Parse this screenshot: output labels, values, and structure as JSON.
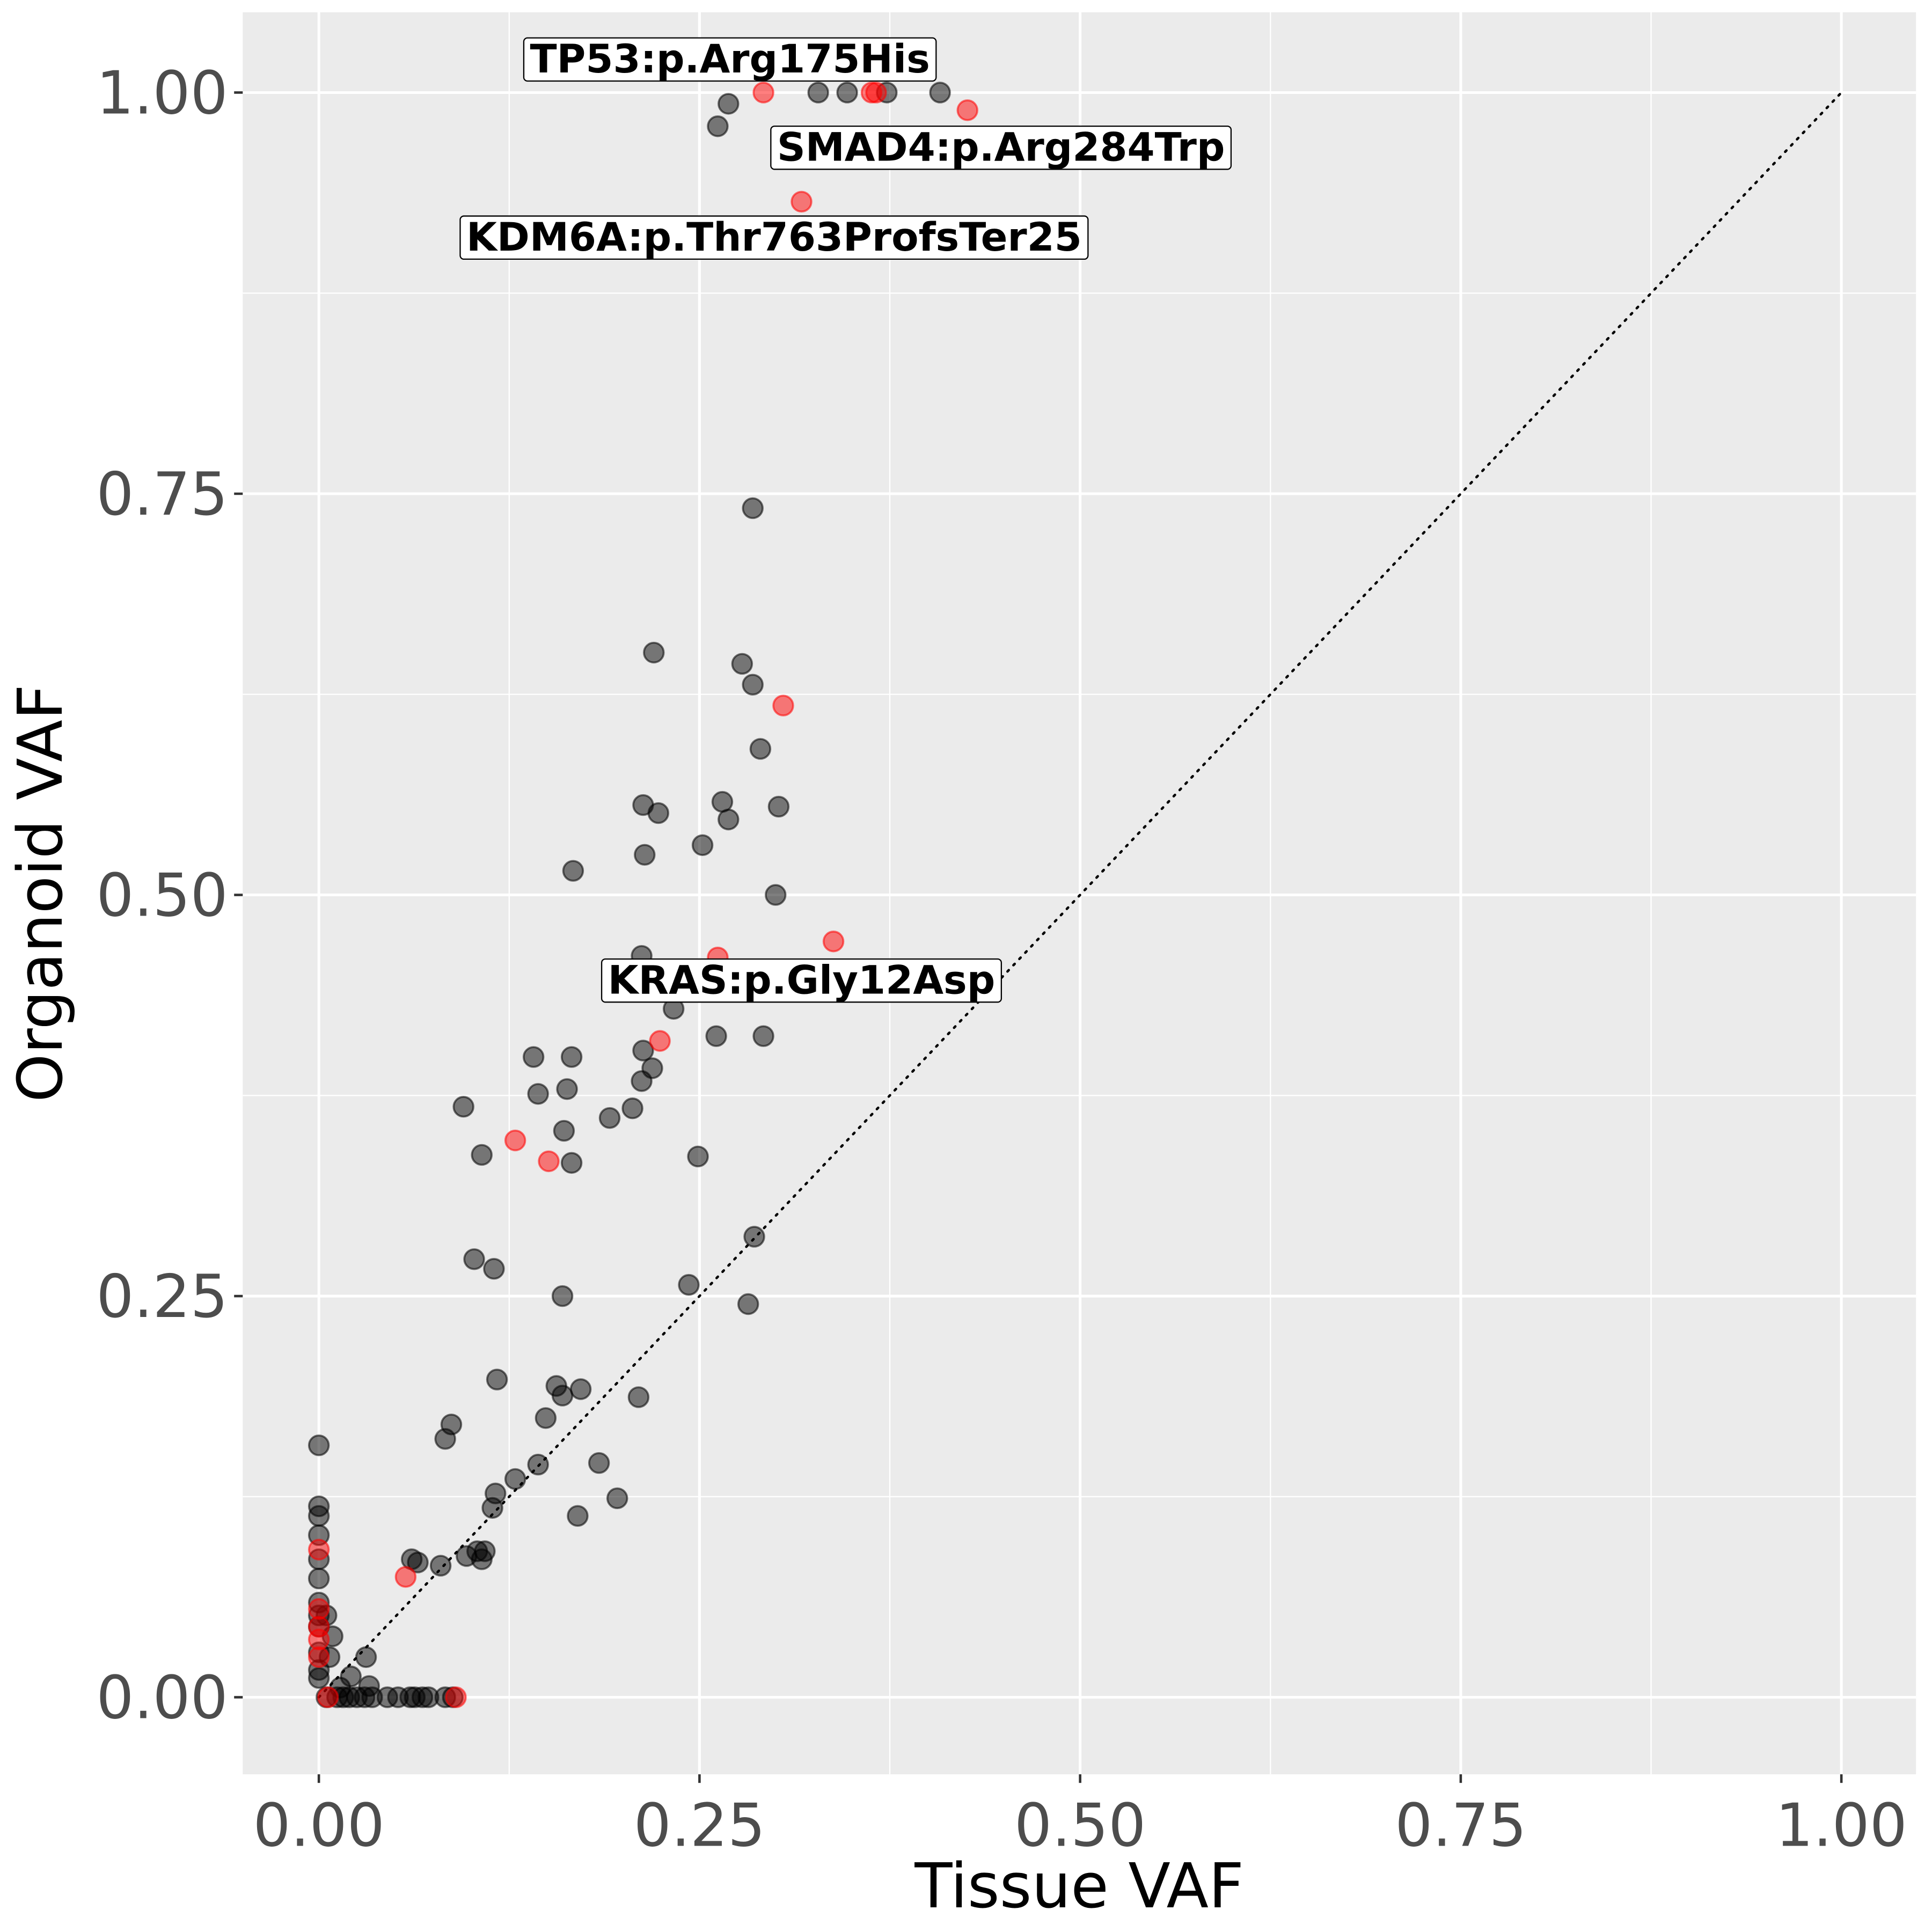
{
  "chart_data": {
    "type": "scatter",
    "xlabel": "Tissue VAF",
    "ylabel": "Organoid VAF",
    "xlim": [
      -0.05,
      1.049
    ],
    "ylim": [
      -0.048,
      1.05
    ],
    "xticks": [
      0,
      0.25,
      0.5,
      0.75,
      1.0
    ],
    "yticks": [
      0,
      0.25,
      0.5,
      0.75,
      1.0
    ],
    "xtick_labels": [
      "0.00",
      "0.25",
      "0.50",
      "0.75",
      "1.00"
    ],
    "ytick_labels": [
      "0.00",
      "0.25",
      "0.50",
      "0.75",
      "1.00"
    ],
    "grid": true,
    "reference_line": {
      "type": "identity",
      "style": "dotted",
      "from": [
        0,
        0
      ],
      "to": [
        1,
        1
      ]
    },
    "colors": {
      "panel": "#ebebeb",
      "black_series": "#000000",
      "red_series": "#ff0000"
    },
    "series": [
      {
        "name": "other",
        "color": "#000000",
        "points": [
          [
            0.262,
            0.979
          ],
          [
            0.269,
            0.993
          ],
          [
            0.328,
            1.0
          ],
          [
            0.347,
            1.0
          ],
          [
            0.373,
            1.0
          ],
          [
            0.408,
            1.0
          ],
          [
            0.285,
            0.741
          ],
          [
            0.22,
            0.651
          ],
          [
            0.278,
            0.644
          ],
          [
            0.285,
            0.631
          ],
          [
            0.29,
            0.591
          ],
          [
            0.265,
            0.558
          ],
          [
            0.213,
            0.556
          ],
          [
            0.223,
            0.551
          ],
          [
            0.269,
            0.547
          ],
          [
            0.302,
            0.555
          ],
          [
            0.252,
            0.531
          ],
          [
            0.214,
            0.525
          ],
          [
            0.167,
            0.515
          ],
          [
            0.3,
            0.5
          ],
          [
            0.212,
            0.462
          ],
          [
            0.233,
            0.429
          ],
          [
            0.261,
            0.412
          ],
          [
            0.292,
            0.412
          ],
          [
            0.213,
            0.403
          ],
          [
            0.219,
            0.392
          ],
          [
            0.212,
            0.384
          ],
          [
            0.141,
            0.399
          ],
          [
            0.166,
            0.399
          ],
          [
            0.144,
            0.376
          ],
          [
            0.163,
            0.379
          ],
          [
            0.095,
            0.368
          ],
          [
            0.206,
            0.367
          ],
          [
            0.191,
            0.361
          ],
          [
            0.161,
            0.353
          ],
          [
            0.166,
            0.333
          ],
          [
            0.107,
            0.338
          ],
          [
            0.249,
            0.337
          ],
          [
            0.286,
            0.287
          ],
          [
            0.102,
            0.273
          ],
          [
            0.115,
            0.267
          ],
          [
            0.16,
            0.25
          ],
          [
            0.243,
            0.257
          ],
          [
            0.282,
            0.245
          ],
          [
            0.117,
            0.198
          ],
          [
            0.156,
            0.194
          ],
          [
            0.172,
            0.192
          ],
          [
            0.16,
            0.188
          ],
          [
            0.21,
            0.187
          ],
          [
            0.149,
            0.174
          ],
          [
            0.087,
            0.17
          ],
          [
            0.083,
            0.161
          ],
          [
            0.144,
            0.145
          ],
          [
            0.184,
            0.146
          ],
          [
            0.129,
            0.136
          ],
          [
            0.116,
            0.127
          ],
          [
            0.114,
            0.118
          ],
          [
            0.196,
            0.124
          ],
          [
            0.17,
            0.113
          ],
          [
            0,
            0.157
          ],
          [
            0,
            0.119
          ],
          [
            0,
            0.113
          ],
          [
            0,
            0.101
          ],
          [
            0,
            0.086
          ],
          [
            0,
            0.074
          ],
          [
            0,
            0.059
          ],
          [
            0,
            0.051
          ],
          [
            0,
            0.044
          ],
          [
            0,
            0.028
          ],
          [
            0,
            0.017
          ],
          [
            0,
            0.012
          ],
          [
            0.061,
            0.086
          ],
          [
            0.065,
            0.084
          ],
          [
            0.08,
            0.082
          ],
          [
            0.097,
            0.088
          ],
          [
            0.104,
            0.091
          ],
          [
            0.107,
            0.086
          ],
          [
            0.109,
            0.091
          ],
          [
            0.031,
            0.025
          ],
          [
            0.033,
            0.007
          ],
          [
            0.005,
            0.051
          ],
          [
            0.009,
            0.038
          ],
          [
            0.007,
            0.025
          ],
          [
            0.021,
            0.013
          ],
          [
            0.014,
            0.006
          ],
          [
            0.005,
            0
          ],
          [
            0.012,
            0
          ],
          [
            0.016,
            0
          ],
          [
            0.02,
            0
          ],
          [
            0.025,
            0
          ],
          [
            0.03,
            0
          ],
          [
            0.035,
            0
          ],
          [
            0.045,
            0
          ],
          [
            0.052,
            0
          ],
          [
            0.06,
            0
          ],
          [
            0.063,
            0
          ],
          [
            0.068,
            0
          ],
          [
            0.072,
            0
          ],
          [
            0.083,
            0
          ],
          [
            0.088,
            0
          ]
        ]
      },
      {
        "name": "highlighted",
        "color": "#ff0000",
        "points": [
          [
            0.292,
            1.0
          ],
          [
            0.363,
            1.0
          ],
          [
            0.366,
            1.0
          ],
          [
            0.426,
            0.989
          ],
          [
            0.317,
            0.932
          ],
          [
            0.305,
            0.618
          ],
          [
            0.338,
            0.471
          ],
          [
            0.262,
            0.461
          ],
          [
            0.224,
            0.409
          ],
          [
            0.129,
            0.347
          ],
          [
            0.151,
            0.334
          ],
          [
            0.057,
            0.075
          ],
          [
            0,
            0.092
          ],
          [
            0,
            0.055
          ],
          [
            0,
            0.044
          ],
          [
            0,
            0.036
          ],
          [
            0,
            0.025
          ],
          [
            0.006,
            0
          ],
          [
            0.09,
            0
          ]
        ]
      }
    ],
    "annotations": [
      {
        "text": "TP53:p.Arg175His",
        "x": 0.27,
        "y": 1.021
      },
      {
        "text": "SMAD4:p.Arg284Trp",
        "x": 0.448,
        "y": 0.966
      },
      {
        "text": "KDM6A:p.Thr763ProfsTer25",
        "x": 0.299,
        "y": 0.91
      },
      {
        "text": "KRAS:p.Gly12Asp",
        "x": 0.317,
        "y": 0.447
      }
    ]
  }
}
